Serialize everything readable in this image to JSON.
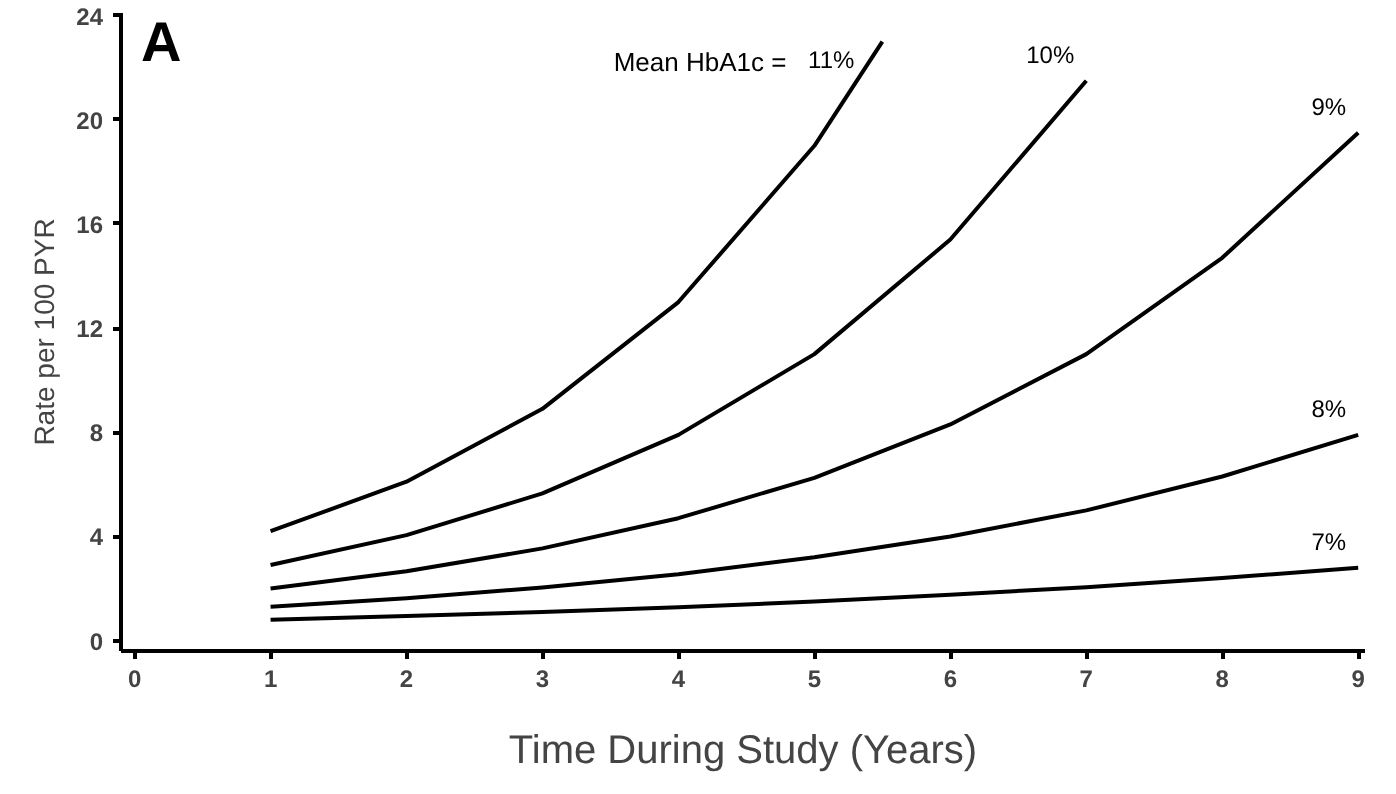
{
  "chart_data": {
    "type": "line",
    "xlabel": "Time During Study (Years)",
    "ylabel": "Rate per 100 PYR",
    "legend_title": "Mean HbA1c =",
    "annotations": [
      "A"
    ],
    "x": [
      1,
      2,
      3,
      4,
      5,
      5.5
    ],
    "series": [
      {
        "name": "11%",
        "color": "#000000",
        "values": [
          4.2,
          6.1,
          8.9,
          13,
          19,
          23
        ]
      },
      {
        "name": "10%",
        "color": "#000000",
        "x": [
          1,
          2,
          3,
          4,
          5,
          6,
          7
        ],
        "values": [
          2.9,
          4.05,
          5.65,
          7.9,
          11.0,
          15.4,
          21.5
        ]
      },
      {
        "name": "9%",
        "color": "#000000",
        "x": [
          1,
          2,
          3,
          4,
          5,
          6,
          7,
          8,
          9
        ],
        "values": [
          2.0,
          2.66,
          3.54,
          4.7,
          6.25,
          8.3,
          11.0,
          14.7,
          19.5
        ]
      },
      {
        "name": "8%",
        "color": "#000000",
        "x": [
          1,
          2,
          3,
          4,
          5,
          6,
          7,
          8,
          9
        ],
        "values": [
          1.3,
          1.63,
          2.04,
          2.55,
          3.2,
          4.0,
          5.0,
          6.3,
          7.9
        ]
      },
      {
        "name": "7%",
        "color": "#000000",
        "x": [
          1,
          2,
          3,
          4,
          5,
          6,
          7,
          8,
          9
        ],
        "values": [
          0.8,
          0.94,
          1.1,
          1.28,
          1.5,
          1.76,
          2.05,
          2.4,
          2.8
        ]
      }
    ],
    "xlim": [
      -0.1,
      9.05
    ],
    "ylim": [
      -0.4,
      24.1
    ],
    "xticks": [
      0,
      1,
      2,
      3,
      4,
      5,
      6,
      7,
      8,
      9
    ],
    "yticks": [
      0,
      4,
      8,
      12,
      16,
      20,
      24
    ],
    "grid": false,
    "legend": false,
    "line_style": "solid",
    "marker": "none"
  }
}
